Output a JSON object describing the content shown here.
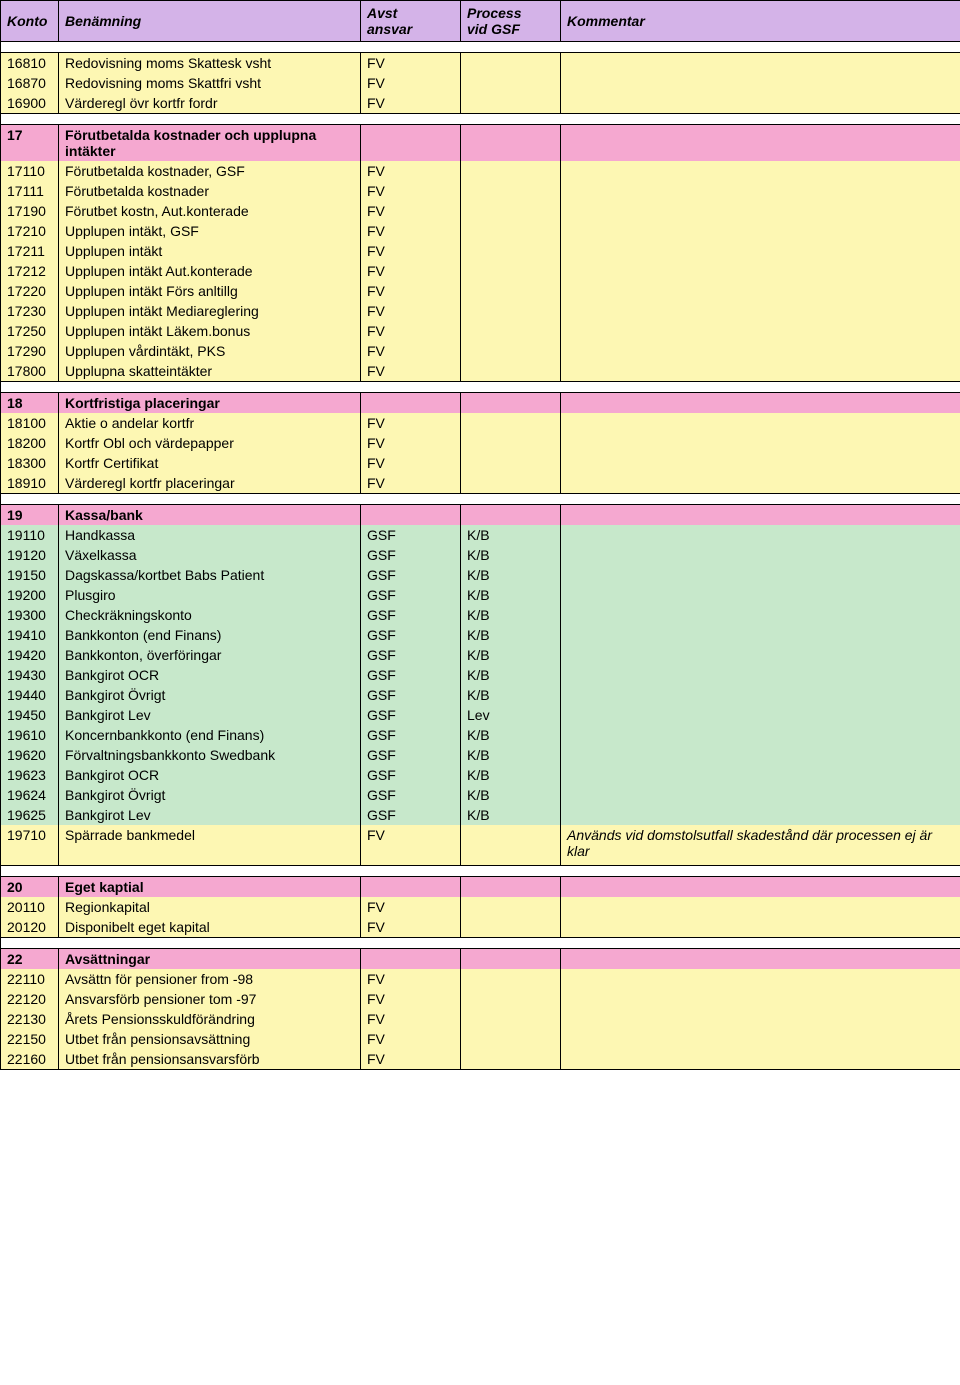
{
  "header": {
    "konto": "Konto",
    "benamning": "Benämning",
    "avst": "Avst\nansvar",
    "process": "Process\nvid GSF",
    "kommentar": "Kommentar"
  },
  "colors": {
    "header_bg": "#d4b3e8",
    "section_bg": "#f5a8d0",
    "yellow_bg": "#fdf7b3",
    "green_bg": "#c7e8cb",
    "spacer_bg": "#ffffff",
    "border": "#000000"
  },
  "rows": [
    {
      "type": "yellow",
      "konto": "16810",
      "benamning": "Redovisning moms Skattesk vsht",
      "avst": "FV",
      "process": "",
      "kommentar": ""
    },
    {
      "type": "yellow",
      "konto": "16870",
      "benamning": "Redovisning moms Skattfri vsht",
      "avst": "FV",
      "process": "",
      "kommentar": ""
    },
    {
      "type": "yellow",
      "konto": "16900",
      "benamning": "Värderegl övr kortfr fordr",
      "avst": "FV",
      "process": "",
      "kommentar": ""
    },
    {
      "type": "spacer"
    },
    {
      "type": "section",
      "konto": "17",
      "benamning": "Förutbetalda kostnader och upplupna intäkter",
      "avst": "",
      "process": "",
      "kommentar": ""
    },
    {
      "type": "yellow",
      "konto": "17110",
      "benamning": "Förutbetalda kostnader, GSF",
      "avst": "FV",
      "process": "",
      "kommentar": ""
    },
    {
      "type": "yellow",
      "konto": "17111",
      "benamning": "Förutbetalda kostnader",
      "avst": "FV",
      "process": "",
      "kommentar": ""
    },
    {
      "type": "yellow",
      "konto": "17190",
      "benamning": "Förutbet kostn, Aut.konterade",
      "avst": "FV",
      "process": "",
      "kommentar": ""
    },
    {
      "type": "yellow",
      "konto": "17210",
      "benamning": "Upplupen intäkt, GSF",
      "avst": "FV",
      "process": "",
      "kommentar": ""
    },
    {
      "type": "yellow",
      "konto": "17211",
      "benamning": "Upplupen intäkt",
      "avst": "FV",
      "process": "",
      "kommentar": ""
    },
    {
      "type": "yellow",
      "konto": "17212",
      "benamning": "Upplupen intäkt Aut.konterade",
      "avst": "FV",
      "process": "",
      "kommentar": ""
    },
    {
      "type": "yellow",
      "konto": "17220",
      "benamning": "Upplupen intäkt Förs anltillg",
      "avst": "FV",
      "process": "",
      "kommentar": ""
    },
    {
      "type": "yellow",
      "konto": "17230",
      "benamning": "Upplupen intäkt Mediareglering",
      "avst": "FV",
      "process": "",
      "kommentar": ""
    },
    {
      "type": "yellow",
      "konto": "17250",
      "benamning": "Upplupen intäkt Läkem.bonus",
      "avst": "FV",
      "process": "",
      "kommentar": ""
    },
    {
      "type": "yellow",
      "konto": "17290",
      "benamning": "Upplupen vårdintäkt, PKS",
      "avst": "FV",
      "process": "",
      "kommentar": ""
    },
    {
      "type": "yellow",
      "konto": "17800",
      "benamning": "Upplupna skatteintäkter",
      "avst": "FV",
      "process": "",
      "kommentar": ""
    },
    {
      "type": "spacer"
    },
    {
      "type": "section",
      "konto": "18",
      "benamning": "Kortfristiga placeringar",
      "avst": "",
      "process": "",
      "kommentar": ""
    },
    {
      "type": "yellow",
      "konto": "18100",
      "benamning": "Aktie o andelar kortfr",
      "avst": "FV",
      "process": "",
      "kommentar": ""
    },
    {
      "type": "yellow",
      "konto": "18200",
      "benamning": "Kortfr Obl och värdepapper",
      "avst": "FV",
      "process": "",
      "kommentar": ""
    },
    {
      "type": "yellow",
      "konto": "18300",
      "benamning": "Kortfr Certifikat",
      "avst": "FV",
      "process": "",
      "kommentar": ""
    },
    {
      "type": "yellow",
      "konto": "18910",
      "benamning": "Värderegl kortfr placeringar",
      "avst": "FV",
      "process": "",
      "kommentar": ""
    },
    {
      "type": "spacer"
    },
    {
      "type": "section",
      "konto": "19",
      "benamning": "Kassa/bank",
      "avst": "",
      "process": "",
      "kommentar": ""
    },
    {
      "type": "green",
      "konto": "19110",
      "benamning": "Handkassa",
      "avst": "GSF",
      "process": "K/B",
      "kommentar": ""
    },
    {
      "type": "green",
      "konto": "19120",
      "benamning": "Växelkassa",
      "avst": "GSF",
      "process": "K/B",
      "kommentar": ""
    },
    {
      "type": "green",
      "konto": "19150",
      "benamning": "Dagskassa/kortbet Babs Patient",
      "avst": "GSF",
      "process": "K/B",
      "kommentar": ""
    },
    {
      "type": "green",
      "konto": "19200",
      "benamning": "Plusgiro",
      "avst": "GSF",
      "process": "K/B",
      "kommentar": ""
    },
    {
      "type": "green",
      "konto": "19300",
      "benamning": "Checkräkningskonto",
      "avst": "GSF",
      "process": "K/B",
      "kommentar": ""
    },
    {
      "type": "green",
      "konto": "19410",
      "benamning": "Bankkonton (end Finans)",
      "avst": "GSF",
      "process": "K/B",
      "kommentar": ""
    },
    {
      "type": "green",
      "konto": "19420",
      "benamning": "Bankkonton, överföringar",
      "avst": "GSF",
      "process": "K/B",
      "kommentar": ""
    },
    {
      "type": "green",
      "konto": "19430",
      "benamning": "Bankgirot OCR",
      "avst": "GSF",
      "process": "K/B",
      "kommentar": ""
    },
    {
      "type": "green",
      "konto": "19440",
      "benamning": "Bankgirot Övrigt",
      "avst": "GSF",
      "process": "K/B",
      "kommentar": ""
    },
    {
      "type": "green",
      "konto": "19450",
      "benamning": "Bankgirot Lev",
      "avst": "GSF",
      "process": "Lev",
      "kommentar": ""
    },
    {
      "type": "green",
      "konto": "19610",
      "benamning": "Koncernbankkonto (end Finans)",
      "avst": "GSF",
      "process": "K/B",
      "kommentar": ""
    },
    {
      "type": "green",
      "konto": "19620",
      "benamning": "Förvaltningsbankkonto Swedbank",
      "avst": "GSF",
      "process": "K/B",
      "kommentar": ""
    },
    {
      "type": "green",
      "konto": "19623",
      "benamning": "Bankgirot OCR",
      "avst": "GSF",
      "process": "K/B",
      "kommentar": ""
    },
    {
      "type": "green",
      "konto": "19624",
      "benamning": "Bankgirot Övrigt",
      "avst": "GSF",
      "process": "K/B",
      "kommentar": ""
    },
    {
      "type": "green",
      "konto": "19625",
      "benamning": "Bankgirot Lev",
      "avst": "GSF",
      "process": "K/B",
      "kommentar": ""
    },
    {
      "type": "yellow",
      "konto": "19710",
      "benamning": "Spärrade bankmedel",
      "avst": "FV",
      "process": "",
      "kommentar": "Används vid domstolsutfall skadestånd där processen ej är klar",
      "italic": true
    },
    {
      "type": "yellow",
      "konto": "",
      "benamning": "",
      "avst": "",
      "process": "",
      "kommentar": ""
    },
    {
      "type": "spacer"
    },
    {
      "type": "section",
      "konto": "20",
      "benamning": "Eget kaptial",
      "avst": "",
      "process": "",
      "kommentar": ""
    },
    {
      "type": "yellow",
      "konto": "20110",
      "benamning": "Regionkapital",
      "avst": "FV",
      "process": "",
      "kommentar": ""
    },
    {
      "type": "yellow",
      "konto": "20120",
      "benamning": "Disponibelt eget kapital",
      "avst": "FV",
      "process": "",
      "kommentar": ""
    },
    {
      "type": "spacer"
    },
    {
      "type": "section",
      "konto": "22",
      "benamning": "Avsättningar",
      "avst": "",
      "process": "",
      "kommentar": ""
    },
    {
      "type": "yellow",
      "konto": "22110",
      "benamning": "Avsättn för pensioner from -98",
      "avst": "FV",
      "process": "",
      "kommentar": ""
    },
    {
      "type": "yellow",
      "konto": "22120",
      "benamning": "Ansvarsförb pensioner tom -97",
      "avst": "FV",
      "process": "",
      "kommentar": ""
    },
    {
      "type": "yellow",
      "konto": "22130",
      "benamning": "Årets Pensionsskuldförändring",
      "avst": "FV",
      "process": "",
      "kommentar": ""
    },
    {
      "type": "yellow",
      "konto": "22150",
      "benamning": "Utbet från pensionsavsättning",
      "avst": "FV",
      "process": "",
      "kommentar": ""
    },
    {
      "type": "yellow",
      "konto": "22160",
      "benamning": "Utbet från pensionsansvarsförb",
      "avst": "FV",
      "process": "",
      "kommentar": ""
    }
  ]
}
